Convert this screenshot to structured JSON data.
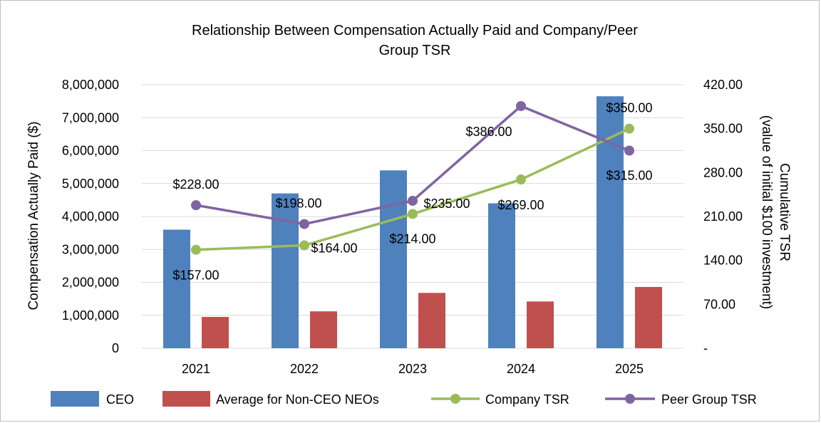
{
  "chart_data": {
    "type": "bar",
    "title_line1": "Relationship Between Compensation Actually Paid and Company/Peer",
    "title_line2": "Group TSR",
    "categories": [
      "2021",
      "2022",
      "2023",
      "2024",
      "2025"
    ],
    "ylabel": "Compensation Actually Paid ($)",
    "y2label_line1": "Cumulative TSR",
    "y2label_line2": "(value of initial $100 investment)",
    "ylim": [
      0,
      8000000
    ],
    "y2lim": [
      0,
      420
    ],
    "yticks": [
      "0",
      "1,000,000",
      "2,000,000",
      "3,000,000",
      "4,000,000",
      "5,000,000",
      "6,000,000",
      "7,000,000",
      "8,000,000"
    ],
    "y2ticks": [
      "-",
      "70.00",
      "140.00",
      "210.00",
      "280.00",
      "350.00",
      "420.00"
    ],
    "grid": true,
    "legend_position": "bottom",
    "series": [
      {
        "name": "CEO",
        "type": "bar",
        "axis": "left",
        "color": "#4f81bd",
        "values": [
          3600000,
          4700000,
          5400000,
          4400000,
          7650000
        ]
      },
      {
        "name": "Average for Non-CEO NEOs",
        "type": "bar",
        "axis": "left",
        "color": "#c0504d",
        "values": [
          950000,
          1120000,
          1680000,
          1420000,
          1860000
        ]
      },
      {
        "name": "Company TSR",
        "type": "line",
        "axis": "right",
        "color": "#9bbb59",
        "values": [
          157,
          164,
          214,
          269,
          350
        ],
        "labels": [
          "$157.00",
          "$164.00",
          "$214.00",
          "$269.00",
          "$350.00"
        ]
      },
      {
        "name": "Peer Group TSR",
        "type": "line",
        "axis": "right",
        "color": "#8064a2",
        "values": [
          228,
          198,
          235,
          386,
          315
        ],
        "labels": [
          "$228.00",
          "$198.00",
          "$235.00",
          "$386.00",
          "$315.00"
        ]
      }
    ]
  }
}
